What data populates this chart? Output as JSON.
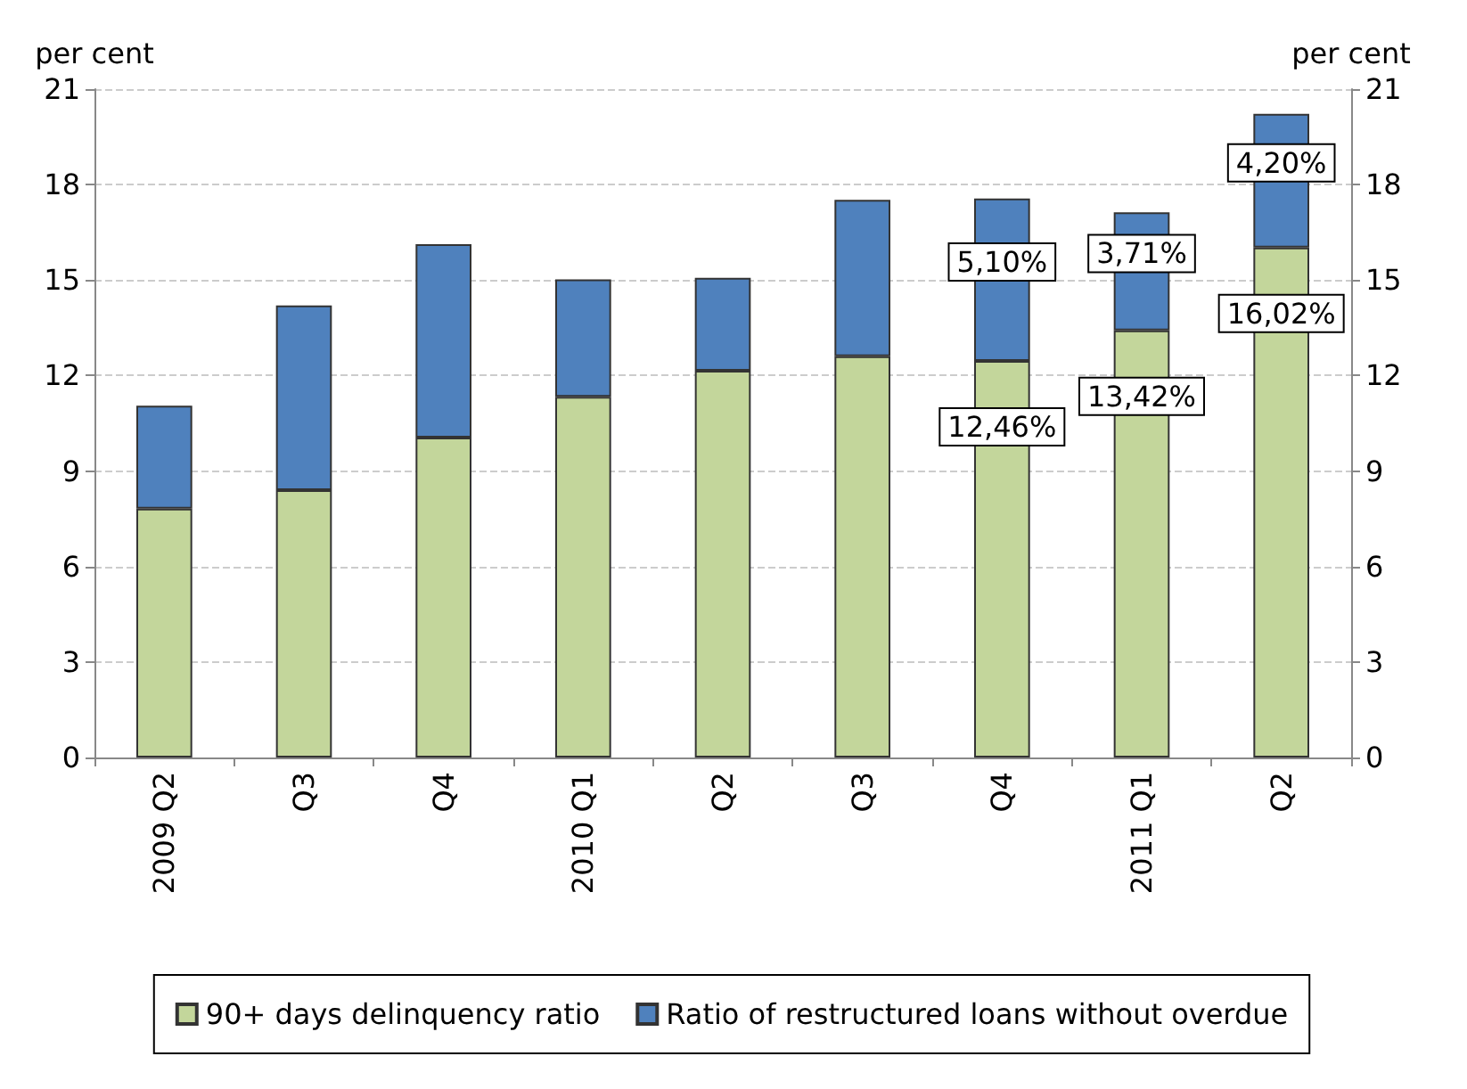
{
  "chart_data": {
    "type": "bar",
    "stacked": true,
    "ylabel": "per cent",
    "y2label": "per cent",
    "categories": [
      "2009 Q2",
      "Q3",
      "Q4",
      "2010 Q1",
      "Q2",
      "Q3",
      "Q4",
      "2011 Q1",
      "Q2"
    ],
    "series": [
      {
        "name": "90+ days delinquency ratio",
        "color": "#c3d69b",
        "values": [
          7.82,
          8.4,
          10.05,
          11.33,
          12.15,
          12.61,
          12.46,
          13.42,
          16.02
        ],
        "value_labels": [
          null,
          null,
          null,
          null,
          null,
          null,
          "12,46%",
          "13,42%",
          "16,02%"
        ]
      },
      {
        "name": "Ratio of restructured loans without overdue",
        "color": "#4f81bd",
        "values": [
          3.23,
          5.8,
          6.08,
          3.69,
          2.92,
          4.91,
          5.1,
          3.71,
          4.2
        ],
        "value_labels": [
          null,
          null,
          null,
          null,
          null,
          null,
          "5,10%",
          "3,71%",
          "4,20%"
        ]
      }
    ],
    "ylim": [
      0,
      21
    ],
    "yticks": [
      0,
      3,
      6,
      9,
      12,
      15,
      18,
      21
    ],
    "y2lim": [
      0,
      21
    ],
    "y2ticks": [
      0,
      3,
      6,
      9,
      12,
      15,
      18,
      21
    ],
    "grid": "y",
    "legend": "bottom"
  }
}
